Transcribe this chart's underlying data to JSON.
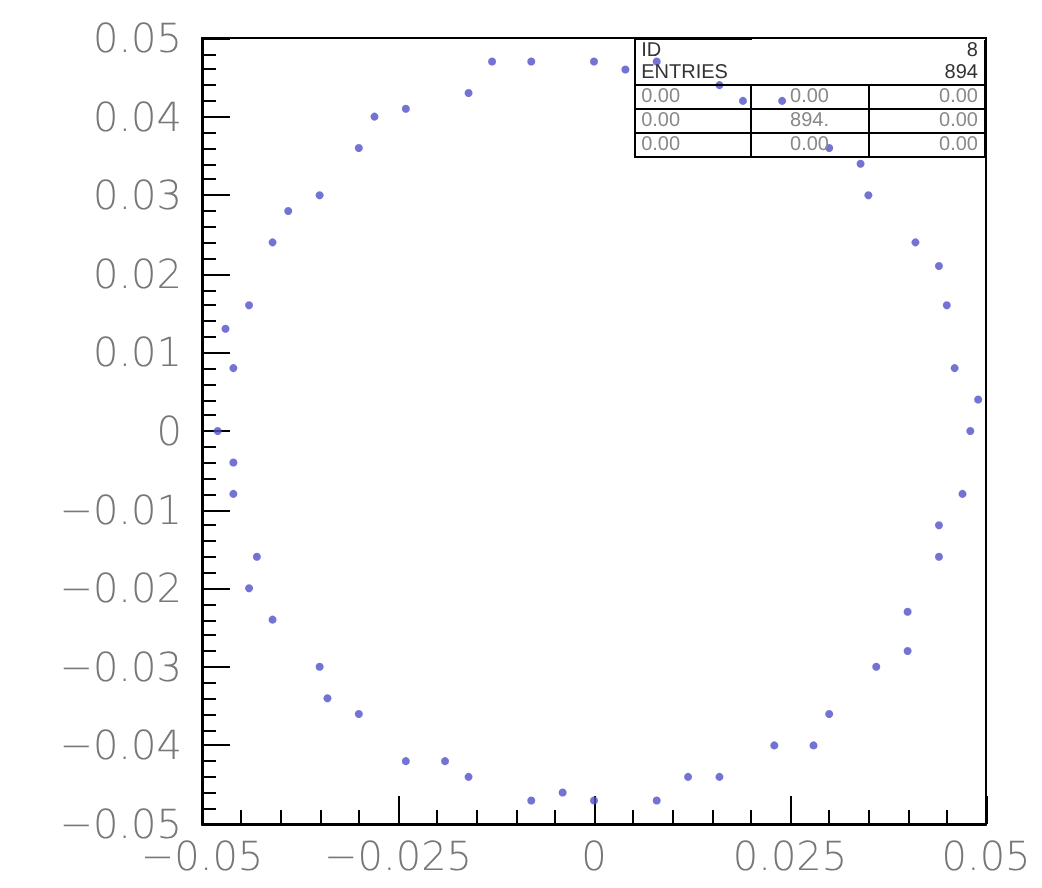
{
  "chart_data": {
    "type": "scatter",
    "marker": "circle",
    "grid": false,
    "xlim": [
      -0.05,
      0.05
    ],
    "xticks": [
      {
        "value": -0.05,
        "label": "−0.05"
      },
      {
        "value": -0.025,
        "label": "−0.025"
      },
      0,
      0.025,
      0.05
    ],
    "ylim": [
      -0.05,
      0.05
    ],
    "yticks": [
      {
        "value": -0.05,
        "label": "−0.05"
      },
      {
        "value": -0.04,
        "label": "−0.04"
      },
      {
        "value": -0.03,
        "label": "−0.03"
      },
      {
        "value": -0.02,
        "label": "−0.02"
      },
      {
        "value": -0.01,
        "label": "−0.01"
      },
      0,
      0.01,
      0.02,
      0.03,
      0.04,
      0.05
    ],
    "annotations": [
      "ID",
      "8",
      "ENTRIES",
      "894",
      "0.00",
      "0.00",
      "0.00",
      "0.00",
      "894.",
      "0.00",
      "0.00",
      "0.00",
      "0.00"
    ],
    "series": [
      {
        "color": "#5050c8",
        "x": [
          0.048,
          0.046,
          0.045,
          0.041,
          0.035,
          0.03,
          0.024,
          0.016,
          0.008,
          0.0,
          -0.008,
          -0.016,
          -0.024,
          -0.03,
          -0.035,
          -0.041,
          -0.044,
          -0.046,
          -0.048,
          -0.046,
          -0.043,
          -0.041,
          -0.035,
          -0.03,
          -0.024,
          -0.016,
          -0.008,
          0.0,
          0.008,
          0.016,
          0.023,
          0.03,
          0.036,
          0.04,
          0.044,
          0.047,
          0.049,
          0.044,
          0.034,
          0.019,
          0.004,
          -0.013,
          -0.028,
          -0.039,
          -0.047,
          -0.046,
          -0.044,
          -0.034,
          -0.019,
          -0.004,
          0.012,
          0.028,
          0.04,
          0.044
        ],
        "values": [
          0.0,
          0.008,
          0.016,
          0.024,
          0.03,
          0.036,
          0.042,
          0.044,
          0.047,
          0.047,
          0.047,
          0.043,
          0.041,
          0.036,
          0.03,
          0.024,
          0.016,
          0.008,
          0.0,
          -0.008,
          -0.016,
          -0.024,
          -0.03,
          -0.036,
          -0.042,
          -0.044,
          -0.047,
          -0.047,
          -0.047,
          -0.044,
          -0.04,
          -0.036,
          -0.03,
          -0.023,
          -0.016,
          -0.008,
          0.004,
          0.021,
          0.034,
          0.042,
          0.046,
          0.047,
          0.04,
          0.028,
          0.013,
          -0.004,
          -0.02,
          -0.034,
          -0.042,
          -0.046,
          -0.044,
          -0.04,
          -0.028,
          -0.012
        ]
      }
    ]
  }
}
